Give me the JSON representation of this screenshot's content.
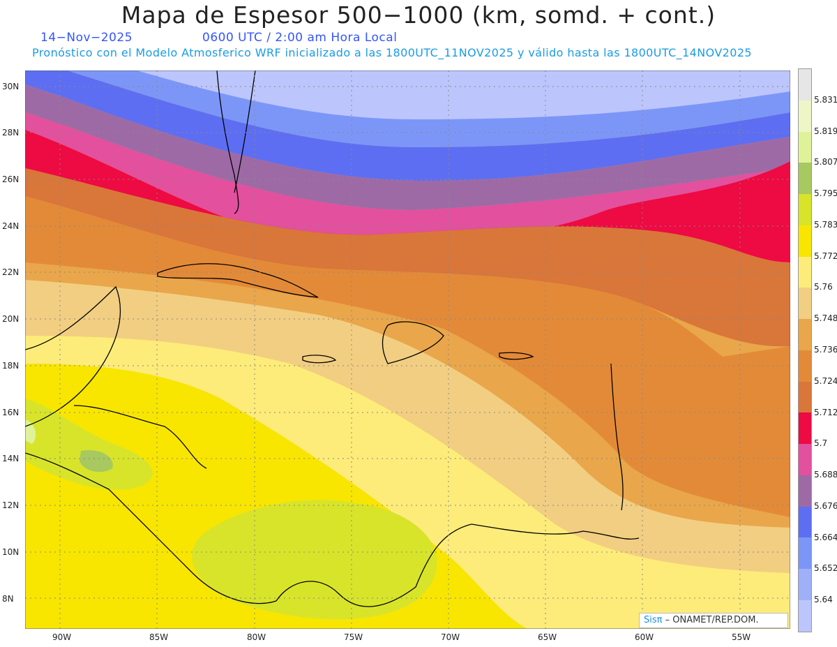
{
  "header": {
    "title": "Mapa de Espesor 500−1000 (km, somd. + cont.)",
    "date": "14−Nov−2025",
    "time": "0600 UTC / 2:00 am Hora Local",
    "model_line": "Pronóstico con el Modelo Atmosferico WRF inicializado a las 1800UTC_11NOV2025 y válido hasta las  1800UTC_14NOV2025"
  },
  "axes": {
    "lat_labels": [
      "30N",
      "28N",
      "26N",
      "24N",
      "22N",
      "20N",
      "18N",
      "16N",
      "14N",
      "12N",
      "10N",
      "8N"
    ],
    "lon_labels": [
      "90W",
      "85W",
      "80W",
      "75W",
      "70W",
      "65W",
      "60W",
      "55W"
    ]
  },
  "colorbar": {
    "labels": [
      "5.831",
      "5.819",
      "5.807",
      "5.795",
      "5.783",
      "5.772",
      "5.76",
      "5.748",
      "5.736",
      "5.724",
      "5.712",
      "5.7",
      "5.688",
      "5.676",
      "5.664",
      "5.652",
      "5.64"
    ],
    "colors": [
      "#e6e6e6",
      "#eef6c8",
      "#dff29a",
      "#a8c860",
      "#d8e42a",
      "#f8e600",
      "#fdec7a",
      "#f2ce82",
      "#e9a64a",
      "#e38a38",
      "#d9763a",
      "#ee0a42",
      "#e2509e",
      "#9e6aa6",
      "#5e6ef2",
      "#7c96f8",
      "#9fb0f8",
      "#bcc6fc"
    ]
  },
  "credit": {
    "brand": "Sisπ",
    "text": " – ONAMET/REP.DOM."
  }
}
